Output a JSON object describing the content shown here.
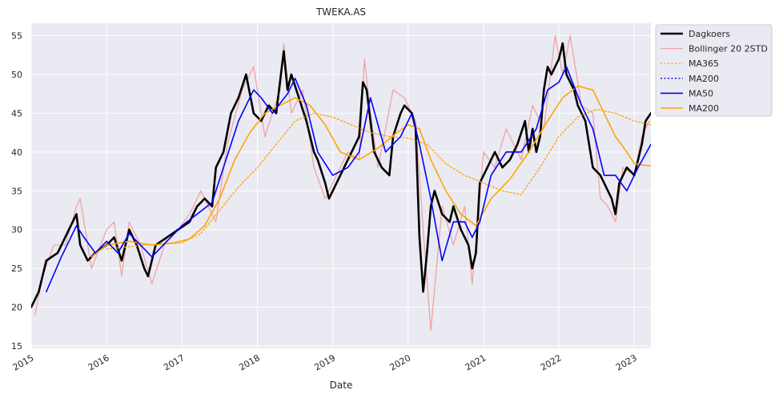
{
  "chart_data": {
    "type": "line",
    "title": "TWEKA.AS",
    "xlabel": "Date",
    "ylabel": "",
    "xlim": [
      2015.0,
      2023.22
    ],
    "ylim": [
      14.7,
      56.6
    ],
    "x_ticks": [
      2015,
      2016,
      2017,
      2018,
      2019,
      2020,
      2021,
      2022,
      2023
    ],
    "x_tick_labels": [
      "2015",
      "2016",
      "2017",
      "2018",
      "2019",
      "2020",
      "2021",
      "2022",
      "2023"
    ],
    "y_ticks": [
      15,
      20,
      25,
      30,
      35,
      40,
      45,
      50,
      55
    ],
    "y_tick_labels": [
      "15",
      "20",
      "25",
      "30",
      "35",
      "40",
      "45",
      "50",
      "55"
    ],
    "grid": true,
    "legend_position": "outside-top-right",
    "series": [
      {
        "name": "Dagkoers",
        "color": "#000000",
        "style": "solid",
        "width": 2.6,
        "x": [
          2015.0,
          2015.1,
          2015.2,
          2015.35,
          2015.5,
          2015.6,
          2015.65,
          2015.75,
          2015.85,
          2016.0,
          2016.1,
          2016.2,
          2016.3,
          2016.4,
          2016.5,
          2016.55,
          2016.65,
          2016.8,
          2016.95,
          2017.1,
          2017.2,
          2017.3,
          2017.4,
          2017.45,
          2017.55,
          2017.65,
          2017.75,
          2017.85,
          2017.95,
          2018.05,
          2018.15,
          2018.25,
          2018.35,
          2018.4,
          2018.45,
          2018.55,
          2018.65,
          2018.75,
          2018.8,
          2018.9,
          2018.95,
          2019.05,
          2019.15,
          2019.25,
          2019.35,
          2019.4,
          2019.45,
          2019.5,
          2019.55,
          2019.65,
          2019.75,
          2019.8,
          2019.9,
          2019.95,
          2020.05,
          2020.1,
          2020.15,
          2020.2,
          2020.25,
          2020.3,
          2020.35,
          2020.45,
          2020.55,
          2020.6,
          2020.7,
          2020.8,
          2020.85,
          2020.9,
          2020.95,
          2021.05,
          2021.15,
          2021.25,
          2021.35,
          2021.45,
          2021.55,
          2021.6,
          2021.65,
          2021.7,
          2021.75,
          2021.8,
          2021.85,
          2021.9,
          2022.0,
          2022.05,
          2022.1,
          2022.15,
          2022.2,
          2022.25,
          2022.35,
          2022.45,
          2022.55,
          2022.6,
          2022.65,
          2022.7,
          2022.75,
          2022.8,
          2022.9,
          2023.0,
          2023.1,
          2023.15,
          2023.22
        ],
        "values": [
          20,
          22,
          26,
          27,
          30,
          32,
          28,
          26,
          27,
          28,
          29,
          26,
          30,
          28,
          25,
          24,
          28,
          29,
          30,
          31,
          33,
          34,
          33,
          38,
          40,
          45,
          47,
          50,
          45,
          44,
          46,
          45,
          53,
          48,
          50,
          47,
          44,
          40,
          39,
          36,
          34,
          36,
          38,
          40,
          42,
          49,
          48,
          44,
          40,
          38,
          37,
          42,
          45,
          46,
          45,
          43,
          29,
          22,
          27,
          33,
          35,
          32,
          31,
          33,
          30,
          28,
          25,
          27,
          36,
          38,
          40,
          38,
          39,
          41,
          44,
          40,
          43,
          40,
          42,
          48,
          51,
          50,
          52,
          54,
          50,
          49,
          48,
          46,
          44,
          38,
          37,
          36,
          35,
          34,
          32,
          36,
          38,
          37,
          41,
          44,
          45
        ]
      },
      {
        "name": "Bollinger 20 2STD",
        "color": "#f0a3a3",
        "style": "solid",
        "width": 1.3,
        "x": [
          2015.05,
          2015.15,
          2015.3,
          2015.45,
          2015.6,
          2015.65,
          2015.8,
          2016.0,
          2016.1,
          2016.2,
          2016.3,
          2016.45,
          2016.6,
          2016.8,
          2016.95,
          2017.1,
          2017.25,
          2017.45,
          2017.6,
          2017.8,
          2017.95,
          2018.1,
          2018.3,
          2018.35,
          2018.45,
          2018.6,
          2018.75,
          2018.9,
          2019.05,
          2019.2,
          2019.35,
          2019.42,
          2019.5,
          2019.6,
          2019.8,
          2019.95,
          2020.1,
          2020.2,
          2020.3,
          2020.45,
          2020.6,
          2020.75,
          2020.85,
          2021.0,
          2021.15,
          2021.3,
          2021.5,
          2021.65,
          2021.8,
          2021.95,
          2022.05,
          2022.15,
          2022.3,
          2022.45,
          2022.55,
          2022.65,
          2022.75,
          2022.85,
          2023.0,
          2023.1,
          2023.2
        ],
        "values": [
          19,
          24,
          28,
          28,
          33,
          34,
          25,
          30,
          31,
          24,
          31,
          28,
          23,
          29,
          30,
          32,
          35,
          31,
          41,
          48,
          51,
          42,
          48,
          54,
          45,
          48,
          38,
          34,
          37,
          40,
          39,
          52,
          45,
          38,
          48,
          47,
          44,
          30,
          17,
          33,
          28,
          33,
          23,
          40,
          38,
          43,
          39,
          46,
          43,
          55,
          50,
          55,
          46,
          45,
          34,
          33,
          31,
          38,
          37,
          42,
          44
        ]
      },
      {
        "name": "MA365",
        "color": "#ffa500",
        "style": "dotted",
        "width": 1.3,
        "x": [
          2016.0,
          2016.5,
          2017.0,
          2017.25,
          2017.5,
          2017.75,
          2018.0,
          2018.25,
          2018.5,
          2018.75,
          2019.0,
          2019.25,
          2019.5,
          2019.75,
          2020.0,
          2020.25,
          2020.5,
          2020.75,
          2021.0,
          2021.25,
          2021.5,
          2021.75,
          2022.0,
          2022.25,
          2022.5,
          2022.75,
          2023.0,
          2023.22
        ],
        "values": [
          27.5,
          28.0,
          28.3,
          29.5,
          32.5,
          35.5,
          38.0,
          41.0,
          44.0,
          45.0,
          44.5,
          43.5,
          42.5,
          42.0,
          41.8,
          41.0,
          38.5,
          37.0,
          36.0,
          35.0,
          34.5,
          38.0,
          42.0,
          44.5,
          45.5,
          45.0,
          44.0,
          43.5
        ]
      },
      {
        "name": "MA50",
        "color": "#0000ff",
        "style": "solid",
        "width": 1.6,
        "x": [
          2015.2,
          2015.4,
          2015.6,
          2015.7,
          2015.85,
          2016.0,
          2016.15,
          2016.3,
          2016.45,
          2016.6,
          2016.8,
          2017.0,
          2017.2,
          2017.4,
          2017.55,
          2017.75,
          2017.95,
          2018.05,
          2018.2,
          2018.4,
          2018.5,
          2018.65,
          2018.8,
          2019.0,
          2019.2,
          2019.35,
          2019.5,
          2019.7,
          2019.9,
          2020.05,
          2020.15,
          2020.3,
          2020.45,
          2020.6,
          2020.75,
          2020.85,
          2020.95,
          2021.1,
          2021.3,
          2021.5,
          2021.7,
          2021.85,
          2022.0,
          2022.1,
          2022.3,
          2022.45,
          2022.6,
          2022.75,
          2022.9,
          2023.05,
          2023.22
        ],
        "values": [
          22,
          26.5,
          30.5,
          29,
          27,
          28.5,
          27,
          29.5,
          28,
          26.5,
          28.5,
          30.5,
          32,
          33.5,
          38,
          44,
          48,
          47,
          45,
          47.5,
          49.5,
          46,
          40,
          37,
          38,
          40,
          47,
          40,
          42,
          45,
          41,
          34,
          26,
          31,
          31,
          29,
          31,
          37,
          40,
          40,
          43,
          48,
          49,
          51,
          46,
          43,
          37,
          37,
          35,
          38,
          41
        ]
      },
      {
        "name": "MA200",
        "color": "#ffa500",
        "style": "solid",
        "width": 1.6,
        "x": [
          2015.8,
          2016.0,
          2016.3,
          2016.6,
          2016.9,
          2017.1,
          2017.3,
          2017.5,
          2017.7,
          2017.9,
          2018.1,
          2018.3,
          2018.5,
          2018.7,
          2018.9,
          2019.1,
          2019.35,
          2019.6,
          2019.85,
          2020.0,
          2020.15,
          2020.3,
          2020.5,
          2020.7,
          2020.9,
          2021.1,
          2021.35,
          2021.6,
          2021.85,
          2022.05,
          2022.25,
          2022.45,
          2022.6,
          2022.75,
          2022.9,
          2023.0,
          2023.22
        ],
        "values": [
          26.5,
          28.0,
          28.5,
          28.0,
          28.3,
          28.8,
          30.5,
          34.0,
          39.0,
          42.5,
          45.0,
          46.0,
          47.0,
          46.0,
          43.5,
          40.0,
          39.0,
          40.5,
          42.5,
          43.5,
          43.0,
          39.0,
          35.0,
          32.0,
          30.5,
          34.0,
          36.5,
          40.0,
          44.0,
          47.0,
          48.5,
          48.0,
          45.0,
          42.0,
          40.0,
          38.5,
          38.2
        ]
      },
      {
        "name": "MA200",
        "color": "#0000cc",
        "style": "dotted",
        "width": 1.3,
        "legend_only": true
      }
    ],
    "legend_order": [
      "Dagkoers",
      "Bollinger 20 2STD",
      "MA365",
      "MA200",
      "MA50",
      "MA200"
    ],
    "legend_styles": [
      {
        "color": "#000000",
        "style": "solid",
        "width": 2.6
      },
      {
        "color": "#f0a3a3",
        "style": "solid",
        "width": 1.3
      },
      {
        "color": "#ffa500",
        "style": "dotted",
        "width": 1.3
      },
      {
        "color": "#0000cc",
        "style": "dotted",
        "width": 1.3
      },
      {
        "color": "#0000ff",
        "style": "solid",
        "width": 1.6
      },
      {
        "color": "#ffa500",
        "style": "solid",
        "width": 1.6
      }
    ],
    "colors": {
      "plot_background": "#eaeaf2",
      "grid": "#ffffff",
      "legend_background": "#eaeaf2",
      "legend_border": "#cccccc"
    }
  }
}
